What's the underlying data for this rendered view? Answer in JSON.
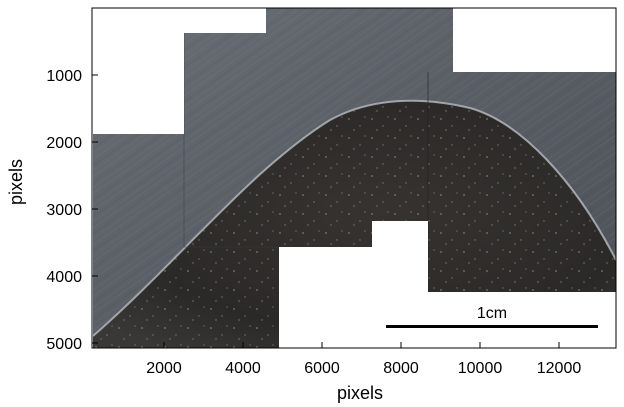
{
  "figure": {
    "xlabel": "pixels",
    "ylabel": "pixels",
    "x_ticks": [
      "2000",
      "4000",
      "6000",
      "8000",
      "10000",
      "12000"
    ],
    "y_ticks": [
      "1000",
      "2000",
      "3000",
      "4000",
      "5000"
    ],
    "scale_bar_label": "1cm",
    "colors": {
      "background": "#ffffff",
      "surface_light": "#5f646b",
      "surface_dark": "#2d2b29",
      "scale_bar": "#000000"
    }
  }
}
